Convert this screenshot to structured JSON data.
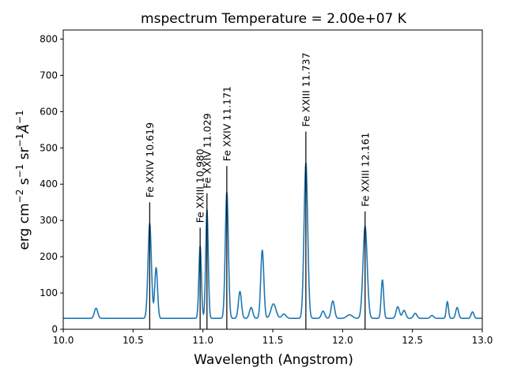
{
  "chart_data": {
    "type": "line",
    "title": "mspectrum Temperature =   2.00e+07 K",
    "xlabel": "Wavelength (Angstrom)",
    "ylabel_parts": {
      "base": "erg cm",
      "e1": "−2",
      "mid1": " s",
      "e2": "−1",
      "mid2": " sr",
      "e3": "−1",
      "angstrom": "Å",
      "e4": "−1"
    },
    "xlim": [
      10.0,
      13.0
    ],
    "ylim": [
      0,
      825
    ],
    "xticks": [
      10.0,
      10.5,
      11.0,
      11.5,
      12.0,
      12.5,
      13.0
    ],
    "xtick_labels": [
      "10.0",
      "10.5",
      "11.0",
      "11.5",
      "12.0",
      "12.5",
      "13.0"
    ],
    "yticks": [
      0,
      100,
      200,
      300,
      400,
      500,
      600,
      700,
      800
    ],
    "ytick_labels": [
      "0",
      "100",
      "200",
      "300",
      "400",
      "500",
      "600",
      "700",
      "800"
    ],
    "grid": false,
    "line_color": "#1f77b4",
    "baseline": 30,
    "peaks": [
      {
        "x": 10.235,
        "h": 28,
        "w": 0.012
      },
      {
        "x": 10.619,
        "h": 262,
        "w": 0.012
      },
      {
        "x": 10.665,
        "h": 140,
        "w": 0.01
      },
      {
        "x": 10.98,
        "h": 200,
        "w": 0.009
      },
      {
        "x": 11.029,
        "h": 300,
        "w": 0.009
      },
      {
        "x": 11.171,
        "h": 348,
        "w": 0.011
      },
      {
        "x": 11.265,
        "h": 74,
        "w": 0.011
      },
      {
        "x": 11.345,
        "h": 30,
        "w": 0.012
      },
      {
        "x": 11.425,
        "h": 188,
        "w": 0.011
      },
      {
        "x": 11.505,
        "h": 40,
        "w": 0.018
      },
      {
        "x": 11.58,
        "h": 12,
        "w": 0.015
      },
      {
        "x": 11.737,
        "h": 428,
        "w": 0.013
      },
      {
        "x": 11.86,
        "h": 20,
        "w": 0.012
      },
      {
        "x": 11.93,
        "h": 48,
        "w": 0.012
      },
      {
        "x": 12.05,
        "h": 10,
        "w": 0.02
      },
      {
        "x": 12.161,
        "h": 254,
        "w": 0.015
      },
      {
        "x": 12.285,
        "h": 106,
        "w": 0.009
      },
      {
        "x": 12.395,
        "h": 32,
        "w": 0.012
      },
      {
        "x": 12.44,
        "h": 22,
        "w": 0.012
      },
      {
        "x": 12.52,
        "h": 14,
        "w": 0.012
      },
      {
        "x": 12.64,
        "h": 8,
        "w": 0.012
      },
      {
        "x": 12.75,
        "h": 46,
        "w": 0.008
      },
      {
        "x": 12.82,
        "h": 30,
        "w": 0.01
      },
      {
        "x": 12.93,
        "h": 18,
        "w": 0.01
      }
    ],
    "lines": [
      {
        "ion": "Fe XXIV",
        "wvl": "10.619",
        "x": 10.619,
        "y": 350
      },
      {
        "ion": "Fe XXIII",
        "wvl": "10.980",
        "x": 10.98,
        "y": 280
      },
      {
        "ion": "Fe XXIV",
        "wvl": "11.029",
        "x": 11.029,
        "y": 375
      },
      {
        "ion": "Fe XXIV",
        "wvl": "11.171",
        "x": 11.171,
        "y": 450
      },
      {
        "ion": "Fe XXIII",
        "wvl": "11.737",
        "x": 11.737,
        "y": 545
      },
      {
        "ion": "Fe XXIII",
        "wvl": "12.161",
        "x": 12.161,
        "y": 325
      }
    ]
  }
}
